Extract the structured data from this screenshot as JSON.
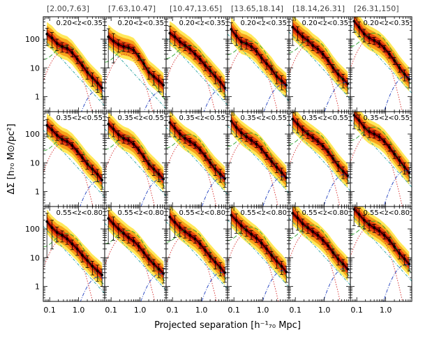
{
  "figure": {
    "xlabel": "Projected separation [h⁻¹₇₀ Mpc]",
    "ylabel": "ΔΣ [h₇₀ M⊙/pc²]",
    "column_labels": [
      "[2.00,7.63]",
      "[7.63,10.47]",
      "[10.47,13.65]",
      "[13.65,18.14]",
      "[18.14,26.31]",
      "[26.31,150]"
    ],
    "row_labels": [
      "0.20<z<0.35",
      "0.35<z<0.55",
      "0.55<z<0.80"
    ],
    "x_ticks": [
      {
        "value": 0.1,
        "label": "0.1"
      },
      {
        "value": 1.0,
        "label": "1.0"
      }
    ],
    "y_ticks": [
      {
        "value": 1,
        "label": "1"
      },
      {
        "value": 10,
        "label": "10"
      },
      {
        "value": 100,
        "label": "100"
      }
    ]
  },
  "chart_data": {
    "type": "line",
    "layout": "grid 3 rows x 6 columns",
    "x_scale": "log",
    "y_scale": "log",
    "xlim": [
      0.06,
      8
    ],
    "ylim": [
      0.3,
      600
    ],
    "bands": [
      "68%",
      "95%",
      "99%"
    ],
    "band_colors": [
      "#a30000",
      "#e8490f",
      "#f7a21a",
      "#ffe85a"
    ],
    "component_colors": {
      "total": "#000000",
      "one_halo": "#2aa02a",
      "miscentred": "#d62728",
      "two_halo": "#1f3fbf",
      "baryonic": "#2aa3a3"
    },
    "x": [
      0.08,
      0.12,
      0.18,
      0.27,
      0.4,
      0.6,
      0.9,
      1.35,
      2.0,
      3.0,
      4.5,
      6.5
    ],
    "panels": [
      {
        "row": 0,
        "col": 0,
        "y": [
          150,
          110,
          70,
          55,
          48,
          34,
          20,
          12,
          7,
          4.5,
          3.0,
          2.0
        ],
        "err": [
          90,
          60,
          30,
          20,
          15,
          10,
          6,
          4,
          3,
          2.2,
          1.6,
          1.2
        ]
      },
      {
        "row": 0,
        "col": 1,
        "y": [
          120,
          85,
          65,
          55,
          50,
          42,
          25,
          14,
          7,
          5,
          3.5,
          2.5
        ],
        "err": [
          110,
          70,
          30,
          18,
          14,
          10,
          7,
          5,
          3,
          2.5,
          2.0,
          1.5
        ]
      },
      {
        "row": 0,
        "col": 2,
        "y": [
          160,
          120,
          80,
          60,
          45,
          30,
          20,
          12,
          8,
          5,
          3.2,
          2.0
        ],
        "err": [
          120,
          60,
          30,
          20,
          14,
          10,
          6,
          4,
          3,
          2.2,
          1.7,
          1.2
        ]
      },
      {
        "row": 0,
        "col": 3,
        "y": [
          220,
          130,
          80,
          70,
          55,
          38,
          22,
          14,
          9,
          5,
          3.5,
          2.5
        ],
        "err": [
          150,
          70,
          35,
          25,
          15,
          10,
          7,
          5,
          3,
          2.2,
          1.8,
          1.4
        ]
      },
      {
        "row": 0,
        "col": 4,
        "y": [
          260,
          180,
          120,
          90,
          60,
          45,
          30,
          18,
          10,
          6,
          4,
          2.8
        ],
        "err": [
          200,
          90,
          45,
          30,
          20,
          12,
          8,
          5,
          3,
          2.5,
          2,
          1.5
        ]
      },
      {
        "row": 0,
        "col": 5,
        "y": [
          420,
          260,
          150,
          110,
          90,
          70,
          48,
          30,
          18,
          10,
          6,
          4
        ],
        "err": [
          250,
          140,
          70,
          40,
          25,
          18,
          12,
          8,
          5,
          3,
          2.5,
          2
        ]
      },
      {
        "row": 1,
        "col": 0,
        "y": [
          200,
          140,
          90,
          65,
          55,
          40,
          25,
          15,
          9,
          6,
          4,
          2.5
        ],
        "err": [
          120,
          60,
          30,
          20,
          14,
          10,
          6,
          4,
          3,
          2.2,
          1.8,
          1.3
        ]
      },
      {
        "row": 1,
        "col": 1,
        "y": [
          220,
          150,
          95,
          70,
          60,
          45,
          28,
          16,
          9,
          6,
          4,
          2.7
        ],
        "err": [
          150,
          70,
          35,
          22,
          15,
          11,
          7,
          5,
          3,
          2.4,
          1.8,
          1.4
        ]
      },
      {
        "row": 1,
        "col": 2,
        "y": [
          250,
          160,
          100,
          70,
          55,
          42,
          28,
          17,
          10,
          6,
          4,
          2.8
        ],
        "err": [
          170,
          80,
          35,
          22,
          15,
          10,
          7,
          5,
          3.2,
          2.4,
          1.9,
          1.4
        ]
      },
      {
        "row": 1,
        "col": 3,
        "y": [
          280,
          170,
          110,
          80,
          60,
          45,
          30,
          18,
          11,
          7,
          4.5,
          3
        ],
        "err": [
          180,
          90,
          40,
          25,
          16,
          11,
          8,
          5,
          3.5,
          2.5,
          2,
          1.5
        ]
      },
      {
        "row": 1,
        "col": 4,
        "y": [
          330,
          220,
          140,
          100,
          75,
          55,
          38,
          24,
          14,
          8,
          5,
          3.5
        ],
        "err": [
          220,
          110,
          50,
          30,
          20,
          13,
          9,
          6,
          4,
          3,
          2.2,
          1.6
        ]
      },
      {
        "row": 1,
        "col": 5,
        "y": [
          450,
          300,
          170,
          120,
          100,
          80,
          55,
          34,
          20,
          12,
          7,
          4.5
        ],
        "err": [
          300,
          160,
          80,
          45,
          28,
          20,
          13,
          9,
          6,
          4,
          3,
          2.2
        ]
      },
      {
        "row": 2,
        "col": 0,
        "y": [
          180,
          110,
          75,
          60,
          45,
          30,
          20,
          12,
          8,
          5,
          3.5,
          2.5
        ],
        "err": [
          170,
          90,
          40,
          25,
          16,
          11,
          8,
          5,
          3.5,
          2.5,
          2,
          1.5
        ]
      },
      {
        "row": 2,
        "col": 1,
        "y": [
          230,
          150,
          100,
          70,
          50,
          38,
          25,
          15,
          9,
          6,
          4,
          2.8
        ],
        "err": [
          200,
          110,
          50,
          30,
          18,
          12,
          8,
          5,
          3.5,
          2.6,
          2,
          1.5
        ]
      },
      {
        "row": 2,
        "col": 2,
        "y": [
          260,
          170,
          110,
          80,
          60,
          45,
          30,
          18,
          11,
          7,
          4.5,
          3
        ],
        "err": [
          220,
          120,
          55,
          32,
          20,
          13,
          9,
          6,
          4,
          3,
          2.2,
          1.6
        ]
      },
      {
        "row": 2,
        "col": 3,
        "y": [
          300,
          200,
          130,
          90,
          65,
          48,
          32,
          20,
          12,
          7.5,
          5,
          3.2
        ],
        "err": [
          250,
          130,
          60,
          35,
          22,
          14,
          10,
          6.5,
          4.5,
          3.2,
          2.4,
          1.8
        ]
      },
      {
        "row": 2,
        "col": 4,
        "y": [
          350,
          240,
          150,
          110,
          80,
          60,
          40,
          26,
          15,
          9,
          6,
          4
        ],
        "err": [
          280,
          150,
          70,
          40,
          25,
          16,
          11,
          7,
          5,
          3.5,
          2.6,
          2
        ]
      },
      {
        "row": 2,
        "col": 5,
        "y": [
          480,
          320,
          200,
          140,
          110,
          85,
          60,
          40,
          24,
          14,
          9,
          6
        ],
        "err": [
          350,
          200,
          100,
          55,
          35,
          24,
          16,
          11,
          7,
          5,
          3.5,
          2.6
        ]
      }
    ]
  }
}
